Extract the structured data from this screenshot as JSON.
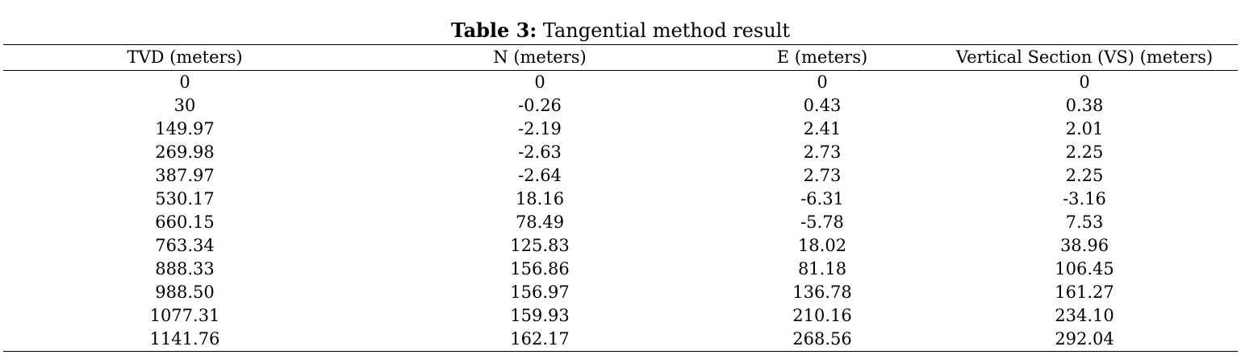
{
  "caption": {
    "label": "Table 3:",
    "text": " Tangential method result"
  },
  "table": {
    "columns": [
      "TVD (meters)",
      "N (meters)",
      "E (meters)",
      "Vertical Section (VS) (meters)"
    ],
    "rows": [
      [
        "0",
        "0",
        "0",
        "0"
      ],
      [
        "30",
        "-0.26",
        "0.43",
        "0.38"
      ],
      [
        "149.97",
        "-2.19",
        "2.41",
        "2.01"
      ],
      [
        "269.98",
        "-2.63",
        "2.73",
        "2.25"
      ],
      [
        "387.97",
        "-2.64",
        "2.73",
        "2.25"
      ],
      [
        "530.17",
        "18.16",
        "-6.31",
        "-3.16"
      ],
      [
        "660.15",
        "78.49",
        "-5.78",
        "7.53"
      ],
      [
        "763.34",
        "125.83",
        "18.02",
        "38.96"
      ],
      [
        "888.33",
        "156.86",
        "81.18",
        "106.45"
      ],
      [
        "988.50",
        "156.97",
        "136.78",
        "161.27"
      ],
      [
        "1077.31",
        "159.93",
        "210.16",
        "234.10"
      ],
      [
        "1141.76",
        "162.17",
        "268.56",
        "292.04"
      ]
    ]
  }
}
